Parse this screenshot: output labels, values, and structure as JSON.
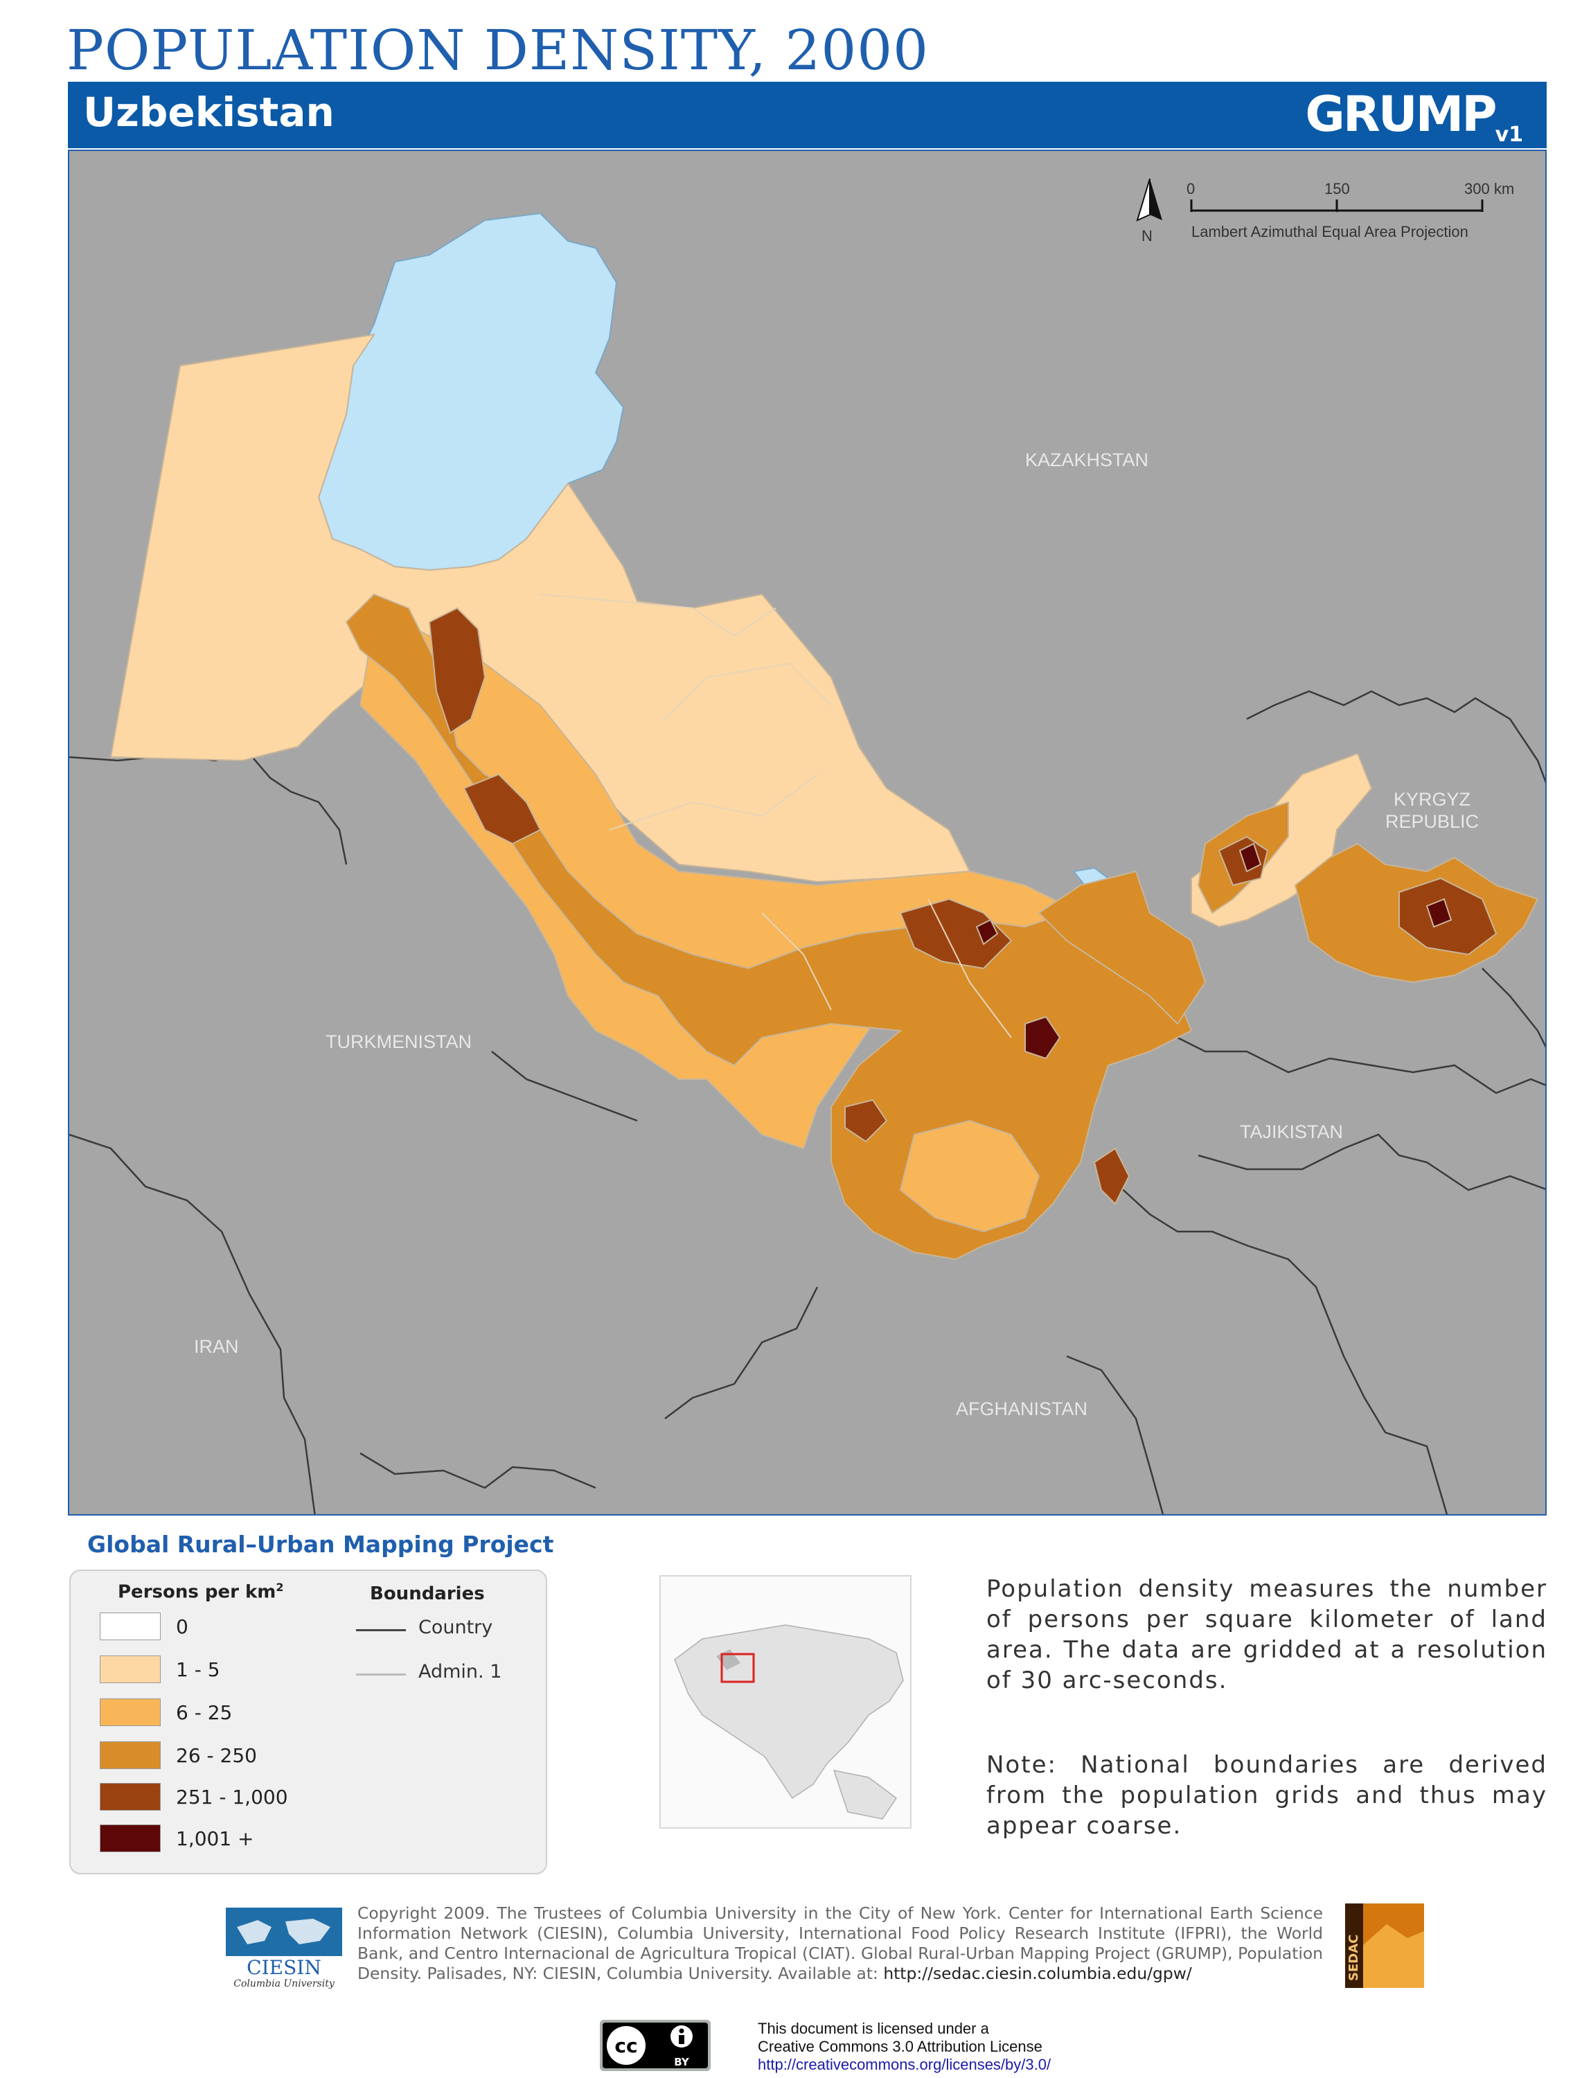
{
  "header": {
    "title": "POPULATION DENSITY, 2000",
    "country": "Uzbekistan",
    "logo_text": "GRUMP",
    "logo_version": "v1"
  },
  "map": {
    "scale": {
      "ticks": [
        "0",
        "150",
        "300 km"
      ],
      "projection": "Lambert Azimuthal Equal Area Projection",
      "north_label": "N"
    },
    "neighbors": {
      "kazakhstan": "KAZAKHSTAN",
      "kyrgyz_line1": "KYRGYZ",
      "kyrgyz_line2": "REPUBLIC",
      "turkmenistan": "TURKMENISTAN",
      "tajikistan": "TAJIKISTAN",
      "iran": "IRAN",
      "afghanistan": "AFGHANISTAN"
    }
  },
  "legend": {
    "project_title": "Global Rural–Urban Mapping Project",
    "density_heading": "Persons per km",
    "density_sup": "2",
    "boundaries_heading": "Boundaries",
    "classes": [
      {
        "label": "0",
        "color": "#ffffff"
      },
      {
        "label": "1 - 5",
        "color": "#fdd8a4"
      },
      {
        "label": "6 - 25",
        "color": "#f8b659"
      },
      {
        "label": "26 - 250",
        "color": "#d88d28"
      },
      {
        "label": "251 - 1,000",
        "color": "#9b4310"
      },
      {
        "label": "1,001 +",
        "color": "#5c0808"
      }
    ],
    "boundaries": [
      {
        "label": "Country",
        "color": "#444444"
      },
      {
        "label": "Admin. 1",
        "color": "#bbbbbb"
      }
    ]
  },
  "description": {
    "p1": "Population density measures the number of persons per square kilometer of land area. The data are gridded at a resolution of 30 arc-seconds.",
    "p2": "Note: National boundaries are derived from the population grids and thus may appear coarse."
  },
  "footer": {
    "copyright": "Copyright 2009. The Trustees of Columbia University in the City of New York. Center for International Earth Science Information Network (CIESIN), Columbia University, International Food Policy Research Institute (IFPRI), the World Bank, and Centro Internacional de Agricultura Tropical (CIAT). Global Rural-Urban Mapping Project (GRUMP), Population Density. Palisades, NY: CIESIN, Columbia University. Available at:",
    "url": "http://sedac.ciesin.columbia.edu/gpw/",
    "ciesin_name": "CIESIN",
    "ciesin_sub": "Columbia University",
    "sedac": "SEDAC",
    "license_line1": "This document is licensed under a",
    "license_line2": "Creative Commons 3.0 Attribution License",
    "license_url": "http://creativecommons.org/licenses/by/3.0/",
    "cc_mark": "cc",
    "by_mark": "BY"
  },
  "colors": {
    "accent_blue": "#0b5aa8",
    "title_blue": "#1f5fad",
    "map_background": "#a6a6a6",
    "water": "#bfe3f7"
  }
}
